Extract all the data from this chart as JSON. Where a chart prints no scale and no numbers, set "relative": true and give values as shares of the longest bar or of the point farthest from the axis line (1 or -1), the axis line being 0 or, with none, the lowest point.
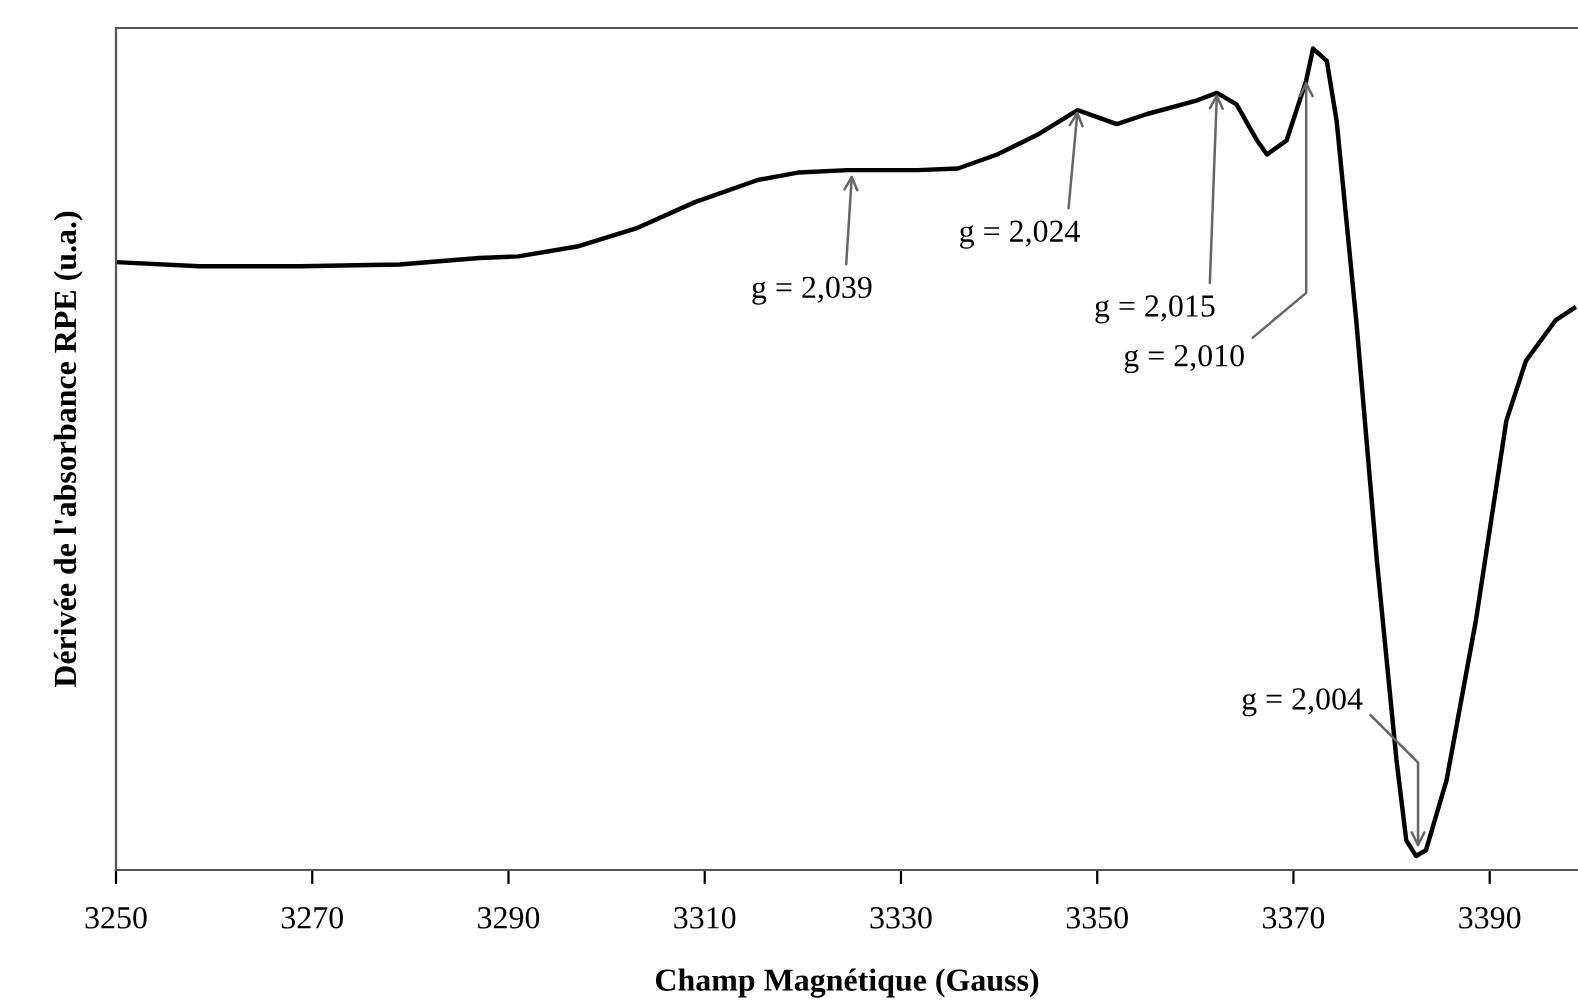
{
  "chart_data": {
    "type": "line",
    "relative": true,
    "xlabel": "Champ Magnétique (Gauss)",
    "ylabel": "Dérivée de l'absorbance RPE (u.a.)",
    "x": [
      3250,
      3258.5,
      3268.7,
      3278.9,
      3287,
      3291,
      3297,
      3303,
      3309,
      3315.4,
      3319.5,
      3324.6,
      3331.7,
      3335.8,
      3339.8,
      3343.9,
      3348,
      3352,
      3355,
      3360.2,
      3362.2,
      3364.2,
      3366.3,
      3367.3,
      3369.3,
      3371.3,
      3372,
      3373.4,
      3374.4,
      3376.4,
      3378.5,
      3380.5,
      3381.5,
      3382.5,
      3383.5,
      3385.6,
      3388.6,
      3391.7,
      3393.7,
      3396.7,
      3398.6
    ],
    "series": [
      {
        "color": "#000000",
        "values": [
          0.74,
          0.735,
          0.735,
          0.737,
          0.745,
          0.747,
          0.759,
          0.781,
          0.813,
          0.84,
          0.849,
          0.852,
          0.852,
          0.854,
          0.871,
          0.895,
          0.925,
          0.908,
          0.92,
          0.937,
          0.946,
          0.932,
          0.888,
          0.871,
          0.888,
          0.961,
          1.0,
          0.985,
          0.912,
          0.669,
          0.377,
          0.134,
          0.036,
          0.017,
          0.024,
          0.109,
          0.304,
          0.547,
          0.62,
          0.669,
          0.684
        ]
      }
    ],
    "xlim": [
      3250,
      3399
    ],
    "xticks": [
      3250,
      3270,
      3290,
      3310,
      3330,
      3350,
      3370,
      3390
    ],
    "annotations": [
      {
        "text": "g = 2,039",
        "x": 3325,
        "y": 0.847
      },
      {
        "text": "g = 2,024",
        "x": 3348,
        "y": 0.925
      },
      {
        "text": "g = 2,015",
        "x": 3362.2,
        "y": 0.946
      },
      {
        "text": "g = 2,010",
        "x": 3371.3,
        "y": 0.961
      },
      {
        "text": "g = 2,004",
        "x": 3382.7,
        "y": 0.027
      }
    ],
    "grid": false,
    "marker": "none",
    "line_style": "solid"
  }
}
